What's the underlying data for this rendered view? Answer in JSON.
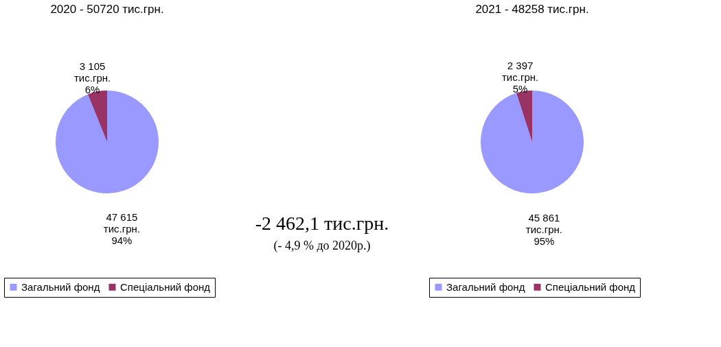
{
  "chart_data": [
    {
      "type": "pie",
      "title": "2020 - 50720 тис.грн.",
      "categories": [
        "Загальний фонд",
        "Спеціальний фонд"
      ],
      "values": [
        47615,
        3105
      ],
      "colors": [
        "#9999ff",
        "#993366"
      ],
      "value_labels": [
        "47 615\nтис.грн.\n94%",
        "3 105\nтис.грн.\n6%"
      ],
      "legend": "bottom",
      "annotations": [
        "-2 462,1 тис.грн.",
        "(- 4,9 % до 2020р.)"
      ]
    },
    {
      "type": "pie",
      "title": "2021 - 48258 тис.грн.",
      "categories": [
        "Загальний фонд",
        "Спеціальний фонд"
      ],
      "values": [
        45861,
        2397
      ],
      "colors": [
        "#9999ff",
        "#993366"
      ],
      "value_labels": [
        "45 861\nтис.грн.\n95%",
        "2 397\nтис.грн.\n5%"
      ],
      "legend": "bottom"
    }
  ]
}
